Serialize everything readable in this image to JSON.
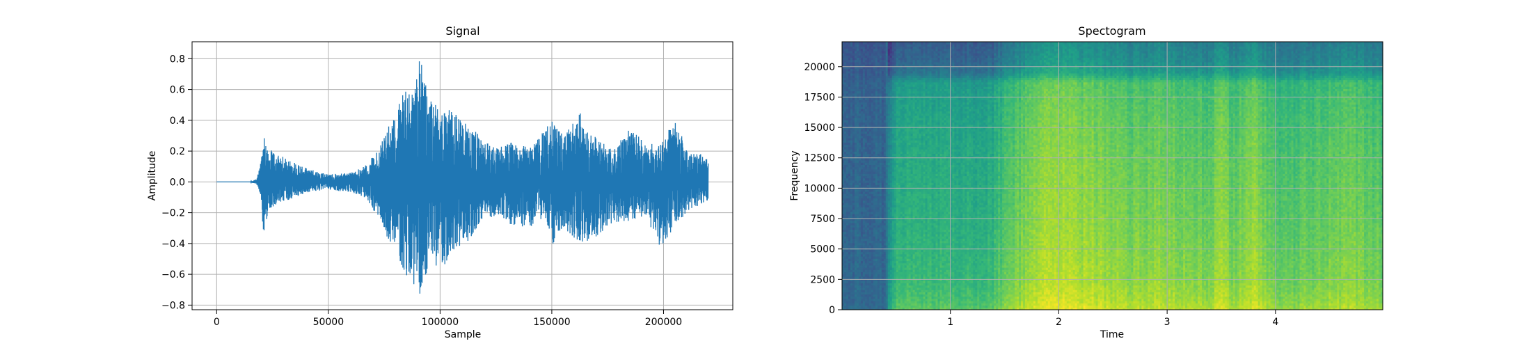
{
  "chart_data": [
    {
      "type": "line",
      "title": "Signal",
      "xlabel": "Sample",
      "ylabel": "Amplitude",
      "xlim": [
        -11000,
        231000
      ],
      "ylim": [
        -0.83,
        0.91
      ],
      "grid": true,
      "xticks": [
        0,
        50000,
        100000,
        150000,
        200000
      ],
      "xtick_labels": [
        "0",
        "50000",
        "100000",
        "150000",
        "200000"
      ],
      "yticks": [
        -0.8,
        -0.6,
        -0.4,
        -0.2,
        0.0,
        0.2,
        0.4,
        0.6,
        0.8
      ],
      "ytick_labels": [
        "−0.8",
        "−0.6",
        "−0.4",
        "−0.2",
        "0.0",
        "0.2",
        "0.4",
        "0.6",
        "0.8"
      ],
      "series": [
        {
          "color": "#1f77b4",
          "x": [
            0,
            15000,
            18000,
            20000,
            21000,
            23000,
            27000,
            32000,
            40000,
            50000,
            60000,
            66000,
            72000,
            77000,
            80000,
            84000,
            88000,
            91000,
            96000,
            100000,
            105000,
            112000,
            118000,
            125000,
            132000,
            140000,
            147000,
            150000,
            155000,
            163000,
            170000,
            178000,
            185000,
            192000,
            199000,
            205000,
            212000,
            220000
          ],
          "upper": [
            0,
            0,
            0.02,
            0.15,
            0.33,
            0.22,
            0.18,
            0.15,
            0.09,
            0.05,
            0.06,
            0.1,
            0.2,
            0.38,
            0.45,
            0.6,
            0.58,
            0.83,
            0.52,
            0.5,
            0.46,
            0.38,
            0.3,
            0.22,
            0.26,
            0.22,
            0.34,
            0.42,
            0.3,
            0.45,
            0.28,
            0.22,
            0.36,
            0.24,
            0.26,
            0.4,
            0.19,
            0.18
          ],
          "lower": [
            0,
            0,
            -0.02,
            -0.1,
            -0.4,
            -0.18,
            -0.15,
            -0.12,
            -0.07,
            -0.05,
            -0.07,
            -0.1,
            -0.22,
            -0.4,
            -0.42,
            -0.6,
            -0.68,
            -0.75,
            -0.55,
            -0.6,
            -0.45,
            -0.4,
            -0.26,
            -0.22,
            -0.28,
            -0.3,
            -0.22,
            -0.42,
            -0.3,
            -0.4,
            -0.36,
            -0.26,
            -0.26,
            -0.22,
            -0.45,
            -0.28,
            -0.18,
            -0.12
          ]
        }
      ]
    },
    {
      "type": "heatmap",
      "title": "Spectogram",
      "xlabel": "Time",
      "ylabel": "Frequency",
      "xlim": [
        0.0,
        4.99
      ],
      "ylim": [
        0,
        22050
      ],
      "grid": true,
      "xticks": [
        1,
        2,
        3,
        4
      ],
      "xtick_labels": [
        "1",
        "2",
        "3",
        "4"
      ],
      "yticks": [
        0,
        2500,
        5000,
        7500,
        10000,
        12500,
        15000,
        17500,
        20000
      ],
      "ytick_labels": [
        "0",
        "2500",
        "5000",
        "7500",
        "10000",
        "12500",
        "15000",
        "17500",
        "20000"
      ],
      "colormap": "viridis",
      "time_profile": {
        "t": [
          0.0,
          0.4,
          0.45,
          0.52,
          0.8,
          1.0,
          1.2,
          1.4,
          1.5,
          1.75,
          1.9,
          2.0,
          2.2,
          2.4,
          2.6,
          2.8,
          3.0,
          3.2,
          3.4,
          3.5,
          3.6,
          3.7,
          3.8,
          4.0,
          4.3,
          4.5,
          4.7,
          4.99
        ],
        "level": [
          0.32,
          0.33,
          0.52,
          0.64,
          0.63,
          0.62,
          0.62,
          0.64,
          0.72,
          0.82,
          0.85,
          0.86,
          0.84,
          0.82,
          0.78,
          0.79,
          0.8,
          0.78,
          0.76,
          0.86,
          0.74,
          0.8,
          0.83,
          0.72,
          0.74,
          0.76,
          0.78,
          0.74
        ]
      },
      "frequency_profile": {
        "f": [
          0,
          800,
          2500,
          5000,
          8000,
          12000,
          16000,
          18700,
          19500,
          20500,
          22050
        ],
        "offset": [
          0.12,
          0.08,
          0.04,
          0.02,
          0.0,
          -0.02,
          -0.05,
          -0.08,
          -0.24,
          -0.3,
          -0.34
        ]
      }
    }
  ]
}
